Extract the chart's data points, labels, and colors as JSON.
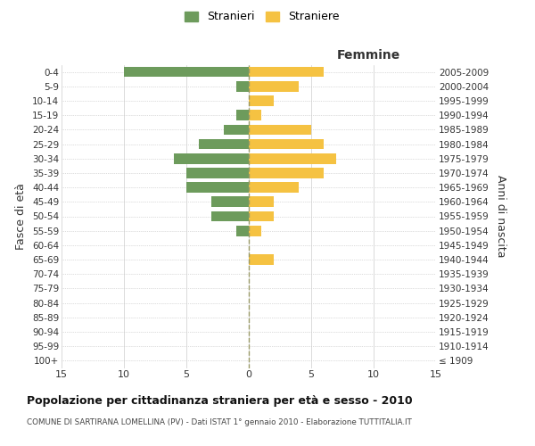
{
  "age_groups": [
    "100+",
    "95-99",
    "90-94",
    "85-89",
    "80-84",
    "75-79",
    "70-74",
    "65-69",
    "60-64",
    "55-59",
    "50-54",
    "45-49",
    "40-44",
    "35-39",
    "30-34",
    "25-29",
    "20-24",
    "15-19",
    "10-14",
    "5-9",
    "0-4"
  ],
  "birth_years": [
    "≤ 1909",
    "1910-1914",
    "1915-1919",
    "1920-1924",
    "1925-1929",
    "1930-1934",
    "1935-1939",
    "1940-1944",
    "1945-1949",
    "1950-1954",
    "1955-1959",
    "1960-1964",
    "1965-1969",
    "1970-1974",
    "1975-1979",
    "1980-1984",
    "1985-1989",
    "1990-1994",
    "1995-1999",
    "2000-2004",
    "2005-2009"
  ],
  "males": [
    0,
    0,
    0,
    0,
    0,
    0,
    0,
    0,
    0,
    1,
    3,
    3,
    5,
    5,
    6,
    4,
    2,
    1,
    0,
    1,
    10
  ],
  "females": [
    0,
    0,
    0,
    0,
    0,
    0,
    0,
    2,
    0,
    1,
    2,
    2,
    4,
    6,
    7,
    6,
    5,
    1,
    2,
    4,
    6
  ],
  "male_color": "#6d9b5c",
  "female_color": "#f5c242",
  "title": "Popolazione per cittadinanza straniera per età e sesso - 2010",
  "subtitle": "COMUNE DI SARTIRANA LOMELLINA (PV) - Dati ISTAT 1° gennaio 2010 - Elaborazione TUTTITALIA.IT",
  "xlabel_right": "Femmine",
  "ylabel_left": "Fasce di età",
  "ylabel_right": "Anni di nascita",
  "legend_male": "Stranieri",
  "legend_female": "Straniere",
  "xlim": 15,
  "background_color": "#ffffff",
  "grid_color": "#cccccc",
  "grid_color_dotted": "#bbbbbb"
}
